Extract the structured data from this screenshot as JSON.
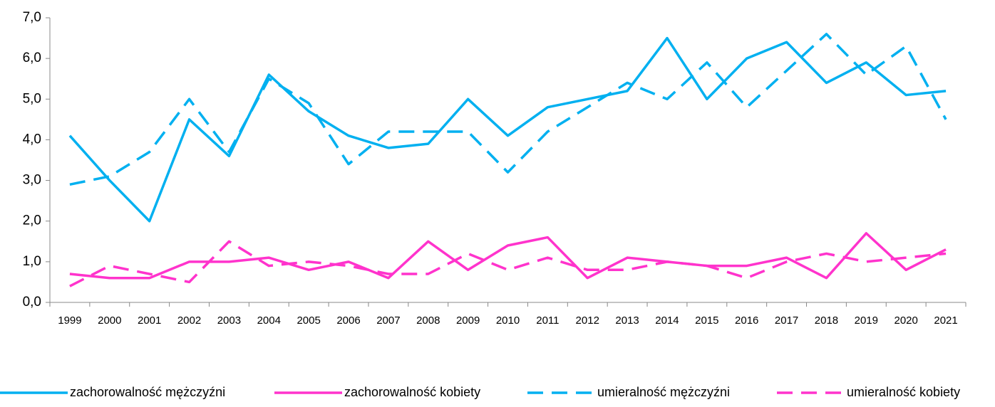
{
  "chart_data": {
    "type": "line",
    "categories": [
      "1999",
      "2000",
      "2001",
      "2002",
      "2003",
      "2004",
      "2005",
      "2006",
      "2007",
      "2008",
      "2009",
      "2010",
      "2011",
      "2012",
      "2013",
      "2014",
      "2015",
      "2016",
      "2017",
      "2018",
      "2019",
      "2020",
      "2021"
    ],
    "series": [
      {
        "name": "zachorowalność mężczyźni",
        "color": "#00b0f0",
        "dash": false,
        "values": [
          4.1,
          3.0,
          2.0,
          4.5,
          3.6,
          5.6,
          4.7,
          4.1,
          3.8,
          3.9,
          5.0,
          4.1,
          4.8,
          5.0,
          5.2,
          6.5,
          5.0,
          6.0,
          6.4,
          5.4,
          5.9,
          5.1,
          5.2
        ]
      },
      {
        "name": "zachorowalność kobiety",
        "color": "#ff33cc",
        "dash": false,
        "values": [
          0.7,
          0.6,
          0.6,
          1.0,
          1.0,
          1.1,
          0.8,
          1.0,
          0.6,
          1.5,
          0.8,
          1.4,
          1.6,
          0.6,
          1.1,
          1.0,
          0.9,
          0.9,
          1.1,
          0.6,
          1.7,
          0.8,
          1.3
        ]
      },
      {
        "name": "umieralność mężczyźni",
        "color": "#00b0f0",
        "dash": true,
        "values": [
          2.9,
          3.1,
          3.7,
          5.0,
          3.7,
          5.5,
          4.9,
          3.4,
          4.2,
          4.2,
          4.2,
          3.2,
          4.2,
          4.8,
          5.4,
          5.0,
          5.9,
          4.8,
          5.7,
          6.6,
          5.6,
          6.3,
          4.5
        ]
      },
      {
        "name": "umieralność kobiety",
        "color": "#ff33cc",
        "dash": true,
        "values": [
          0.4,
          0.9,
          0.7,
          0.5,
          1.5,
          0.9,
          1.0,
          0.9,
          0.7,
          0.7,
          1.2,
          0.8,
          1.1,
          0.8,
          0.8,
          1.0,
          0.9,
          0.6,
          1.0,
          1.2,
          1.0,
          1.1,
          1.2
        ]
      }
    ],
    "ylim": [
      0,
      7
    ],
    "yticks": [
      {
        "value": 0,
        "label": "0,0"
      },
      {
        "value": 1,
        "label": "1,0"
      },
      {
        "value": 2,
        "label": "2,0"
      },
      {
        "value": 3,
        "label": "3,0"
      },
      {
        "value": 4,
        "label": "4,0"
      },
      {
        "value": 5,
        "label": "5,0"
      },
      {
        "value": 6,
        "label": "6,0"
      },
      {
        "value": 7,
        "label": "7,0"
      }
    ],
    "grid": false,
    "legend": "bottom"
  }
}
